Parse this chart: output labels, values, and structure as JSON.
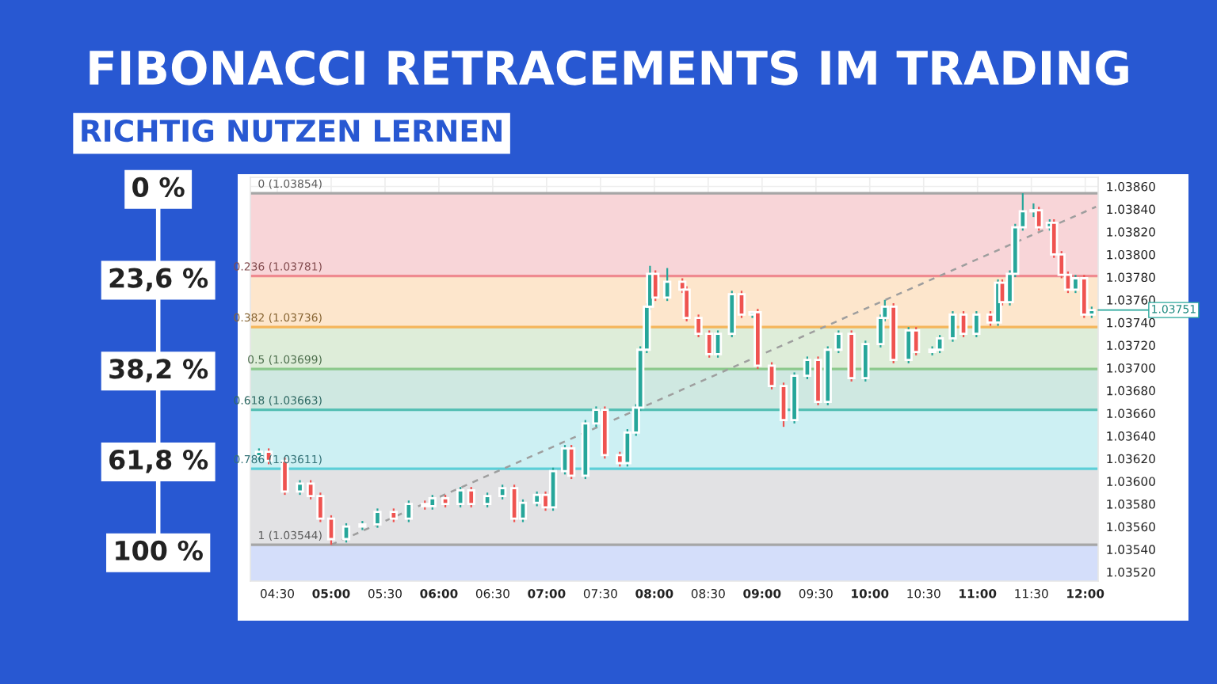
{
  "chart_data": {
    "type": "candlestick",
    "title": "FIBONACCI RETRACEMENTS IM TRADING",
    "subtitle": "RICHTIG NUTZEN LERNEN",
    "x": [
      4.33,
      4.42,
      4.57,
      4.71,
      4.81,
      4.9,
      5.0,
      5.14,
      5.29,
      5.43,
      5.58,
      5.72,
      5.87,
      5.94,
      6.06,
      6.2,
      6.3,
      6.45,
      6.59,
      6.7,
      6.78,
      6.91,
      6.99,
      7.06,
      7.17,
      7.23,
      7.36,
      7.46,
      7.54,
      7.68,
      7.75,
      7.83,
      7.87,
      7.93,
      7.96,
      8.01,
      8.12,
      8.26,
      8.3,
      8.41,
      8.51,
      8.59,
      8.72,
      8.81,
      8.91,
      8.96,
      9.09,
      9.2,
      9.3,
      9.42,
      9.52,
      9.61,
      9.71,
      9.83,
      9.96,
      10.1,
      10.14,
      10.22,
      10.36,
      10.43,
      10.58,
      10.65,
      10.77,
      10.87,
      10.99,
      11.12,
      11.19,
      11.23,
      11.3,
      11.35,
      11.42,
      11.52,
      11.57,
      11.67,
      11.71,
      11.78,
      11.84,
      11.91,
      11.99,
      12.06
    ],
    "ohlc": [
      [
        1.03622,
        1.03629,
        1.03619,
        1.03626
      ],
      [
        1.03626,
        1.03629,
        1.03615,
        1.03618
      ],
      [
        1.03618,
        1.03621,
        1.03588,
        1.03591
      ],
      [
        1.03591,
        1.03601,
        1.03588,
        1.03598
      ],
      [
        1.03598,
        1.03601,
        1.03584,
        1.03587
      ],
      [
        1.03587,
        1.0359,
        1.03564,
        1.03567
      ],
      [
        1.03567,
        1.0357,
        1.03544,
        1.03549
      ],
      [
        1.03549,
        1.03563,
        1.03546,
        1.0356
      ],
      [
        1.0356,
        1.03565,
        1.03557,
        1.03562
      ],
      [
        1.03562,
        1.03576,
        1.03559,
        1.03573
      ],
      [
        1.03573,
        1.03576,
        1.03564,
        1.03567
      ],
      [
        1.03567,
        1.03583,
        1.03564,
        1.0358
      ],
      [
        1.0358,
        1.03583,
        1.03575,
        1.03578
      ],
      [
        1.03578,
        1.03588,
        1.03575,
        1.03585
      ],
      [
        1.03585,
        1.03588,
        1.03577,
        1.0358
      ],
      [
        1.0358,
        1.03595,
        1.03577,
        1.03592
      ],
      [
        1.03592,
        1.03595,
        1.03577,
        1.0358
      ],
      [
        1.0358,
        1.0359,
        1.03577,
        1.03587
      ],
      [
        1.03587,
        1.03597,
        1.03584,
        1.03594
      ],
      [
        1.03594,
        1.03597,
        1.03564,
        1.03567
      ],
      [
        1.03567,
        1.03584,
        1.03564,
        1.03581
      ],
      [
        1.03581,
        1.03591,
        1.03578,
        1.03588
      ],
      [
        1.03588,
        1.03591,
        1.03574,
        1.03577
      ],
      [
        1.03577,
        1.03612,
        1.03574,
        1.03609
      ],
      [
        1.03609,
        1.03632,
        1.03606,
        1.03629
      ],
      [
        1.03629,
        1.03632,
        1.03602,
        1.03605
      ],
      [
        1.03605,
        1.03654,
        1.03602,
        1.03651
      ],
      [
        1.03651,
        1.03666,
        1.03648,
        1.03663
      ],
      [
        1.03663,
        1.03666,
        1.0362,
        1.03623
      ],
      [
        1.03623,
        1.03626,
        1.03613,
        1.03616
      ],
      [
        1.03616,
        1.03646,
        1.03613,
        1.03643
      ],
      [
        1.03643,
        1.03668,
        1.0364,
        1.03665
      ],
      [
        1.03665,
        1.03719,
        1.03662,
        1.03716
      ],
      [
        1.03716,
        1.03757,
        1.03713,
        1.03754
      ],
      [
        1.03754,
        1.0379,
        1.03751,
        1.03783
      ],
      [
        1.03783,
        1.03786,
        1.03759,
        1.03762
      ],
      [
        1.03762,
        1.03788,
        1.03759,
        1.03776
      ],
      [
        1.03776,
        1.03779,
        1.03766,
        1.03769
      ],
      [
        1.03769,
        1.03772,
        1.03741,
        1.03744
      ],
      [
        1.03744,
        1.03747,
        1.03727,
        1.0373
      ],
      [
        1.0373,
        1.03733,
        1.03709,
        1.03712
      ],
      [
        1.03712,
        1.03733,
        1.03709,
        1.0373
      ],
      [
        1.0373,
        1.03768,
        1.03727,
        1.03765
      ],
      [
        1.03765,
        1.03768,
        1.03744,
        1.03747
      ],
      [
        1.03747,
        1.0375,
        1.03744,
        1.03749
      ],
      [
        1.03749,
        1.03752,
        1.03699,
        1.03702
      ],
      [
        1.03702,
        1.03705,
        1.03681,
        1.03684
      ],
      [
        1.03684,
        1.03687,
        1.03648,
        1.03654
      ],
      [
        1.03654,
        1.03696,
        1.03651,
        1.03693
      ],
      [
        1.03693,
        1.0371,
        1.0369,
        1.03707
      ],
      [
        1.03707,
        1.0371,
        1.03667,
        1.0367
      ],
      [
        1.0367,
        1.03719,
        1.03667,
        1.03716
      ],
      [
        1.03716,
        1.03733,
        1.03713,
        1.0373
      ],
      [
        1.0373,
        1.03733,
        1.03688,
        1.03691
      ],
      [
        1.03691,
        1.03724,
        1.03688,
        1.03721
      ],
      [
        1.03721,
        1.03747,
        1.03718,
        1.03744
      ],
      [
        1.03744,
        1.0376,
        1.03741,
        1.03754
      ],
      [
        1.03754,
        1.03757,
        1.03704,
        1.03707
      ],
      [
        1.03707,
        1.03736,
        1.03704,
        1.03733
      ],
      [
        1.03733,
        1.03736,
        1.03711,
        1.03714
      ],
      [
        1.03714,
        1.03719,
        1.03711,
        1.03716
      ],
      [
        1.03716,
        1.03729,
        1.03713,
        1.03726
      ],
      [
        1.03726,
        1.0375,
        1.03723,
        1.03747
      ],
      [
        1.03747,
        1.0375,
        1.03727,
        1.0373
      ],
      [
        1.0373,
        1.0375,
        1.03727,
        1.03747
      ],
      [
        1.03747,
        1.0375,
        1.03737,
        1.0374
      ],
      [
        1.0374,
        1.03778,
        1.03737,
        1.03775
      ],
      [
        1.03775,
        1.03778,
        1.03755,
        1.03758
      ],
      [
        1.03758,
        1.03786,
        1.03755,
        1.03783
      ],
      [
        1.03783,
        1.03827,
        1.0378,
        1.03824
      ],
      [
        1.03824,
        1.03854,
        1.03821,
        1.03838
      ],
      [
        1.03838,
        1.03845,
        1.03833,
        1.03839
      ],
      [
        1.03839,
        1.03842,
        1.03821,
        1.03824
      ],
      [
        1.03824,
        1.03831,
        1.03821,
        1.03828
      ],
      [
        1.03828,
        1.03831,
        1.03797,
        1.038
      ],
      [
        1.038,
        1.03803,
        1.03779,
        1.03782
      ],
      [
        1.03782,
        1.03785,
        1.03766,
        1.03769
      ],
      [
        1.03769,
        1.03782,
        1.03766,
        1.03779
      ],
      [
        1.03779,
        1.03782,
        1.03744,
        1.03747
      ],
      [
        1.03747,
        1.03754,
        1.03744,
        1.03751
      ]
    ],
    "series": [
      {
        "type": "line",
        "x": [
          5.0,
          12.1
        ],
        "values": [
          1.03544,
          1.03842
        ],
        "color": "#9e9e9e",
        "line_style": "dashed"
      }
    ],
    "xlim": [
      4.25,
      12.12
    ],
    "ylim": [
      1.03512,
      1.03868
    ],
    "xticks": [
      {
        "value": 4.5,
        "label": "04:30"
      },
      {
        "value": 5,
        "label": "05:00"
      },
      {
        "value": 5.5,
        "label": "05:30"
      },
      {
        "value": 6,
        "label": "06:00"
      },
      {
        "value": 6.5,
        "label": "06:30"
      },
      {
        "value": 7,
        "label": "07:00"
      },
      {
        "value": 7.5,
        "label": "07:30"
      },
      {
        "value": 8,
        "label": "08:00"
      },
      {
        "value": 8.5,
        "label": "08:30"
      },
      {
        "value": 9,
        "label": "09:00"
      },
      {
        "value": 9.5,
        "label": "09:30"
      },
      {
        "value": 10,
        "label": "10:00"
      },
      {
        "value": 10.5,
        "label": "10:30"
      },
      {
        "value": 11,
        "label": "11:00"
      },
      {
        "value": 11.5,
        "label": "11:30"
      },
      {
        "value": 12,
        "label": "12:00"
      }
    ],
    "yticks": [
      {
        "value": 1.0352,
        "label": "1.03520"
      },
      {
        "value": 1.0354,
        "label": "1.03540"
      },
      {
        "value": 1.0356,
        "label": "1.03560"
      },
      {
        "value": 1.0358,
        "label": "1.03580"
      },
      {
        "value": 1.036,
        "label": "1.03600"
      },
      {
        "value": 1.0362,
        "label": "1.03620"
      },
      {
        "value": 1.0364,
        "label": "1.03640"
      },
      {
        "value": 1.0366,
        "label": "1.03660"
      },
      {
        "value": 1.0368,
        "label": "1.03680"
      },
      {
        "value": 1.037,
        "label": "1.03700"
      },
      {
        "value": 1.0372,
        "label": "1.03720"
      },
      {
        "value": 1.0374,
        "label": "1.03740"
      },
      {
        "value": 1.0376,
        "label": "1.03760"
      },
      {
        "value": 1.0378,
        "label": "1.03780"
      },
      {
        "value": 1.038,
        "label": "1.03800"
      },
      {
        "value": 1.0382,
        "label": "1.03820"
      },
      {
        "value": 1.0384,
        "label": "1.03840"
      },
      {
        "value": 1.0386,
        "label": "1.03860"
      }
    ],
    "ref_lines": [
      {
        "axis": "y",
        "value": 1.03854,
        "label": "0 (1.03854)",
        "color": "#a6a6a6"
      },
      {
        "axis": "y",
        "value": 1.03781,
        "label": "0.236 (1.03781)",
        "color": "#ef8a90"
      },
      {
        "axis": "y",
        "value": 1.03736,
        "label": "0.382 (1.03736)",
        "color": "#f5b55a"
      },
      {
        "axis": "y",
        "value": 1.03699,
        "label": "0.5 (1.03699)",
        "color": "#8cc98c"
      },
      {
        "axis": "y",
        "value": 1.03663,
        "label": "0.618 (1.03663)",
        "color": "#55bfb4"
      },
      {
        "axis": "y",
        "value": 1.03611,
        "label": "0.786 (1.03611)",
        "color": "#5ccfd8"
      },
      {
        "axis": "y",
        "value": 1.03544,
        "label": "1 (1.03544)",
        "color": "#a6a6a6"
      }
    ],
    "bands": [
      {
        "axis": "y",
        "from": 1.03781,
        "to": 1.03854,
        "color": "#f8d5d8"
      },
      {
        "axis": "y",
        "from": 1.03736,
        "to": 1.03781,
        "color": "#fde6cc"
      },
      {
        "axis": "y",
        "from": 1.03699,
        "to": 1.03736,
        "color": "#deedd9"
      },
      {
        "axis": "y",
        "from": 1.03663,
        "to": 1.03699,
        "color": "#cfe8e1"
      },
      {
        "axis": "y",
        "from": 1.03611,
        "to": 1.03663,
        "color": "#cdf0f3"
      },
      {
        "axis": "y",
        "from": 1.03544,
        "to": 1.03611,
        "color": "#e2e2e4"
      },
      {
        "axis": "y",
        "from": 1.03512,
        "to": 1.03544,
        "color": "#d4defa"
      }
    ],
    "annotations": [
      "0 %",
      "23,6 %",
      "38,2 %",
      "61,8 %",
      "100 %",
      "1.03751"
    ],
    "grid": true,
    "legend": false
  }
}
